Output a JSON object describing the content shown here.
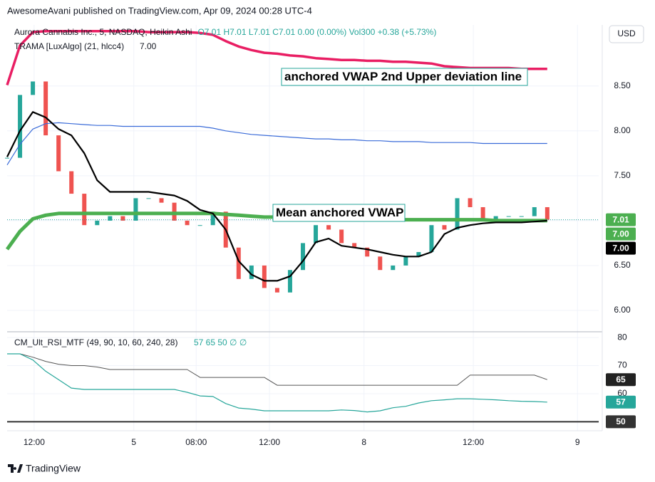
{
  "header": {
    "published": "AwesomeAvani published on TradingView.com, Apr 09, 2024 00:28 UTC-4",
    "ohlc": "O7.01 H7.01 L7.01 C7.01 0.00 (0.00%) Vol300 +0.38 (+5.73%)",
    "currency": "USD",
    "brand": "TradingView",
    "rsi_values": "57 65 50 ∅ ∅"
  },
  "annotations": [
    "anchored VWAP 2nd Upper deviation line",
    "Mean anchored VWAP"
  ],
  "chart_data": [
    {
      "type": "line",
      "title": "Aurora Cannabis Inc., 5, NASDAQ, Heikin Ashi",
      "x": [
        0,
        2,
        4,
        6,
        8,
        10,
        12,
        14,
        16,
        18,
        20,
        22,
        24,
        26,
        28,
        30,
        32,
        34,
        36,
        38,
        40,
        42,
        44,
        46,
        48,
        50,
        52,
        54,
        56,
        58,
        60,
        62,
        64,
        66,
        68,
        70,
        72,
        74,
        76,
        78,
        80,
        82,
        84
      ],
      "xlim": [
        0,
        92
      ],
      "ylim": [
        5.77,
        9.18
      ],
      "yticks": [
        {
          "value": 6,
          "label": "6.00"
        },
        {
          "value": 6.5,
          "label": "6.50"
        },
        {
          "value": 7,
          "label": "7.00"
        },
        {
          "value": 7.5,
          "label": "7.50"
        },
        {
          "value": 8,
          "label": "8.00"
        },
        {
          "value": 8.5,
          "label": "8.50"
        }
      ],
      "grid": true,
      "series": [
        {
          "style": "candles",
          "up_color": "#26a69a",
          "down_color": "#ef5350",
          "last_label": "7.01",
          "label_color": "#4caf50",
          "values": [
            7.7,
            8.4,
            8.55,
            7.95,
            7.55,
            7.3,
            6.95,
            7.0,
            7.05,
            7.0,
            7.25,
            7.25,
            7.2,
            7.0,
            6.95,
            6.95,
            7.1,
            6.7,
            6.35,
            6.5,
            6.25,
            6.2,
            6.45,
            6.75,
            6.95,
            6.9,
            6.75,
            6.7,
            6.6,
            6.45,
            6.5,
            6.6,
            6.65,
            6.95,
            6.9,
            7.25,
            7.15,
            7.0,
            7.05,
            7.05,
            7.05,
            7.15,
            7.01
          ]
        },
        {
          "color": "#e91e63",
          "width": 3.5,
          "values": [
            8.51,
            8.95,
            9.1,
            9.11,
            9.11,
            9.11,
            9.11,
            9.11,
            9.11,
            9.11,
            9.11,
            9.1,
            9.1,
            9.1,
            9.1,
            9.09,
            9.07,
            9.0,
            8.94,
            8.9,
            8.87,
            8.86,
            8.84,
            8.83,
            8.81,
            8.8,
            8.79,
            8.79,
            8.78,
            8.78,
            8.77,
            8.77,
            8.76,
            8.75,
            8.72,
            8.71,
            8.7,
            8.7,
            8.7,
            8.7,
            8.69,
            8.69,
            8.69
          ]
        },
        {
          "color": "#3a6bd8",
          "width": 1.2,
          "values": [
            7.62,
            7.85,
            8.02,
            8.08,
            8.09,
            8.08,
            8.07,
            8.06,
            8.06,
            8.05,
            8.05,
            8.05,
            8.05,
            8.05,
            8.05,
            8.05,
            8.03,
            8.0,
            7.98,
            7.96,
            7.95,
            7.94,
            7.93,
            7.92,
            7.91,
            7.91,
            7.9,
            7.9,
            7.89,
            7.89,
            7.88,
            7.88,
            7.88,
            7.87,
            7.87,
            7.87,
            7.87,
            7.86,
            7.86,
            7.86,
            7.86,
            7.86,
            7.86
          ]
        },
        {
          "color": "#4caf50",
          "width": 5,
          "last_label": "7.00",
          "label_color": "#4caf50",
          "values": [
            6.68,
            6.88,
            7.02,
            7.06,
            7.08,
            7.08,
            7.08,
            7.08,
            7.08,
            7.08,
            7.08,
            7.08,
            7.08,
            7.08,
            7.08,
            7.08,
            7.08,
            7.07,
            7.06,
            7.05,
            7.04,
            7.04,
            7.03,
            7.03,
            7.02,
            7.02,
            7.02,
            7.02,
            7.01,
            7.01,
            7.01,
            7.01,
            7.01,
            7.01,
            7.01,
            7.01,
            7.01,
            7.01,
            7.0,
            7.0,
            7.0,
            7.0,
            7.0
          ]
        },
        {
          "name": "TRAMA [LuxAlgo] (21, hlcc4)",
          "legend_value": "7.00",
          "color": "#000000",
          "width": 2.2,
          "last_label": "7.00",
          "label_color": "#000000",
          "values": [
            7.71,
            8.0,
            8.21,
            8.15,
            8.02,
            7.95,
            7.75,
            7.45,
            7.32,
            7.32,
            7.32,
            7.32,
            7.3,
            7.28,
            7.22,
            7.12,
            7.08,
            6.9,
            6.55,
            6.4,
            6.33,
            6.33,
            6.38,
            6.55,
            6.76,
            6.8,
            6.72,
            6.7,
            6.68,
            6.65,
            6.62,
            6.6,
            6.6,
            6.65,
            6.85,
            6.92,
            6.95,
            6.97,
            6.98,
            6.98,
            6.98,
            6.99,
            7.0
          ]
        }
      ]
    },
    {
      "type": "line",
      "title": "CM_Ult_RSI_MTF (49, 90, 10, 60, 240, 28)",
      "x": [
        0,
        2,
        4,
        6,
        8,
        10,
        12,
        14,
        16,
        18,
        20,
        22,
        24,
        26,
        28,
        30,
        32,
        34,
        36,
        38,
        40,
        42,
        44,
        46,
        48,
        50,
        52,
        54,
        56,
        58,
        60,
        62,
        64,
        66,
        68,
        70,
        72,
        74,
        76,
        78,
        80,
        82,
        84
      ],
      "xlim": [
        0,
        92
      ],
      "ylim": [
        46.8,
        81.8
      ],
      "yticks": [
        60,
        70,
        80
      ],
      "grid": true,
      "xticks": [
        {
          "value": 4.2,
          "label": "12:00"
        },
        {
          "value": 19.7,
          "label": "5"
        },
        {
          "value": 29.4,
          "label": "08:00"
        },
        {
          "value": 40.8,
          "label": "12:00"
        },
        {
          "value": 55.5,
          "label": "8"
        },
        {
          "value": 72.5,
          "label": "12:00"
        },
        {
          "value": 88.7,
          "label": "9"
        }
      ],
      "level": 50,
      "level_color": "#333333",
      "series": [
        {
          "color": "#555555",
          "width": 1,
          "label_color": "#222222",
          "values": [
            74.2,
            74.2,
            73.0,
            71.5,
            70.5,
            70.0,
            70.0,
            69.5,
            68.6,
            68.6,
            68.6,
            68.6,
            68.6,
            68.6,
            68.6,
            65.8,
            65.8,
            65.8,
            65.8,
            65.8,
            65.8,
            63.0,
            63.0,
            63.0,
            63.0,
            63.0,
            63.0,
            63.0,
            63.0,
            63.0,
            63.0,
            63.0,
            63.0,
            63.0,
            63.0,
            63.0,
            66.6,
            66.6,
            66.6,
            66.6,
            66.6,
            66.6,
            65
          ]
        },
        {
          "color": "#26a69a",
          "width": 1.2,
          "label_color": "#26a69a",
          "values": [
            74.2,
            74.2,
            72.0,
            68.0,
            65.0,
            62.0,
            61.5,
            61.5,
            61.5,
            61.5,
            61.5,
            61.5,
            61.5,
            61.5,
            60.5,
            59.2,
            59.0,
            56.5,
            54.9,
            54.5,
            53.9,
            53.9,
            53.9,
            53.9,
            53.9,
            53.9,
            54.2,
            54.0,
            53.5,
            53.9,
            55.0,
            55.5,
            56.7,
            57.5,
            57.8,
            58.2,
            58.2,
            58.0,
            57.8,
            57.5,
            57.3,
            57.2,
            57
          ]
        }
      ]
    }
  ]
}
